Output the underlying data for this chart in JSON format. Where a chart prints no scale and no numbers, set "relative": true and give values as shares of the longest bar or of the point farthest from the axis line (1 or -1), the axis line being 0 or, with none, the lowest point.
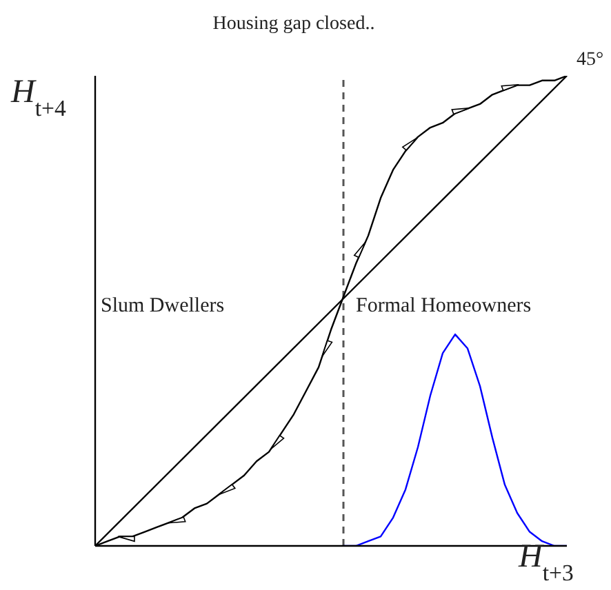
{
  "chart_data": {
    "type": "line",
    "relative": true,
    "title": "Housing gap closed..",
    "xlabel": "H$_{t+3}$",
    "ylabel": "H$_{t+4}$",
    "categories": [
      null,
      null,
      null,
      null,
      null,
      null,
      null,
      null,
      null,
      null,
      null,
      null,
      null,
      null,
      null,
      null,
      null,
      null,
      null,
      null,
      null,
      null,
      null,
      null,
      null,
      null,
      null,
      null,
      null,
      null,
      null,
      null,
      null,
      null,
      null,
      null,
      null,
      null,
      null
    ],
    "annotations": [
      "Slum Dwellers",
      "Formal Homeowners",
      "45°"
    ],
    "series": [
      {
        "color": "#000000",
        "values": [
          0,
          null,
          null,
          null,
          null,
          null,
          null,
          null,
          null,
          null,
          null,
          null,
          null,
          null,
          null,
          null,
          null,
          null,
          null,
          null,
          null,
          null,
          null,
          null,
          null,
          null,
          null,
          null,
          null,
          null,
          null,
          null,
          null,
          null,
          null,
          null,
          null,
          null,
          1
        ]
      },
      {
        "color": "#000000",
        "values": [
          0,
          0.01,
          0.02,
          0.02,
          0.03,
          0.04,
          0.05,
          0.06,
          0.08,
          0.09,
          0.11,
          0.13,
          0.15,
          0.18,
          0.2,
          0.24,
          0.28,
          0.33,
          0.38,
          0.46,
          0.53,
          0.6,
          0.66,
          0.74,
          0.8,
          0.84,
          0.87,
          0.89,
          0.9,
          0.92,
          0.93,
          0.94,
          0.96,
          0.97,
          0.98,
          0.98,
          0.99,
          0.99,
          1
        ]
      },
      {
        "color": "#0000ff",
        "values": [
          null,
          null,
          null,
          null,
          null,
          null,
          null,
          null,
          null,
          null,
          null,
          null,
          null,
          null,
          null,
          null,
          null,
          null,
          null,
          null,
          0,
          0,
          0.01,
          0.02,
          0.06,
          0.12,
          0.21,
          0.32,
          0.41,
          0.45,
          0.42,
          0.34,
          0.23,
          0.13,
          0.07,
          0.03,
          0.01,
          0,
          0
        ]
      }
    ]
  }
}
